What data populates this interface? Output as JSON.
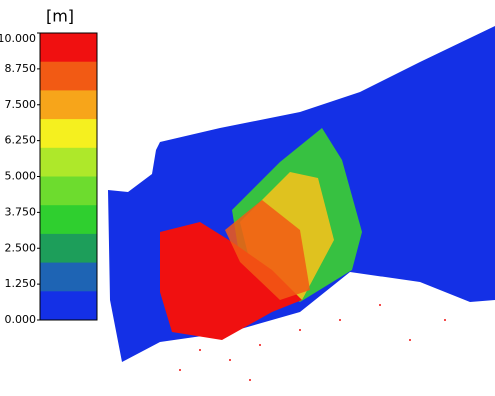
{
  "legend": {
    "unit": "[m]",
    "ticks": [
      {
        "value": 10,
        "label": "10.000"
      },
      {
        "value": 8.75,
        "label": "8.750"
      },
      {
        "value": 7.5,
        "label": "7.500"
      },
      {
        "value": 6.25,
        "label": "6.250"
      },
      {
        "value": 5,
        "label": "5.000"
      },
      {
        "value": 3.75,
        "label": "3.750"
      },
      {
        "value": 2.5,
        "label": "2.500"
      },
      {
        "value": 1.25,
        "label": "1.250"
      },
      {
        "value": 0,
        "label": "0.000"
      }
    ],
    "band_colors": [
      "#f01010",
      "#f25a14",
      "#f7a51a",
      "#f5f01f",
      "#aee82a",
      "#6ddc2e",
      "#2fcf2f",
      "#1d9e5a",
      "#1e64b4",
      "#1430e6"
    ]
  }
}
